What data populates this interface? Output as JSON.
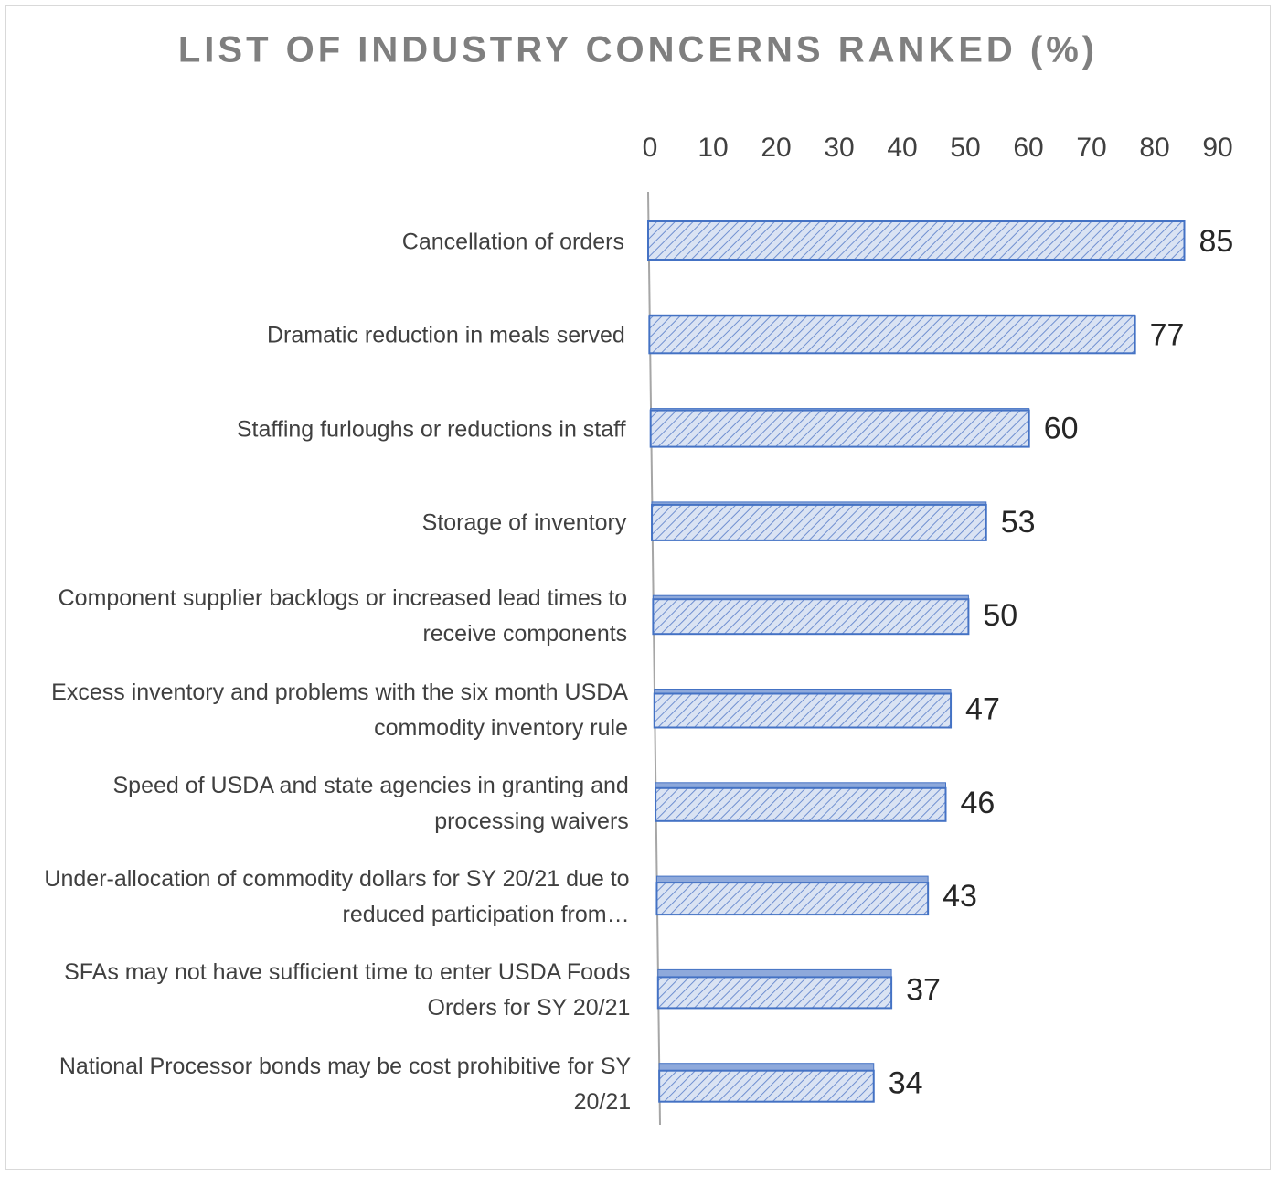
{
  "chart_data": {
    "type": "bar",
    "orientation": "horizontal",
    "title": "LIST OF INDUSTRY CONCERNS RANKED (%)",
    "categories": [
      "Cancellation of orders",
      "Dramatic reduction in meals served",
      "Staffing furloughs or reductions in staff",
      "Storage of inventory",
      "Component supplier backlogs or increased lead times to receive components",
      "Excess inventory and problems with the six month USDA commodity inventory rule",
      "Speed of USDA and state agencies in granting and processing waivers",
      "Under-allocation of commodity dollars for SY 20/21 due to reduced participation from…",
      "SFAs may not have sufficient time to enter USDA Foods Orders for SY 20/21",
      "National Processor bonds may be cost prohibitive for SY 20/21"
    ],
    "values": [
      85,
      77,
      60,
      53,
      50,
      47,
      46,
      43,
      37,
      34
    ],
    "color": "#4472c4",
    "xlim": [
      0,
      90
    ],
    "xticks": [
      0,
      10,
      20,
      30,
      40,
      50,
      60,
      70,
      80,
      90
    ]
  }
}
